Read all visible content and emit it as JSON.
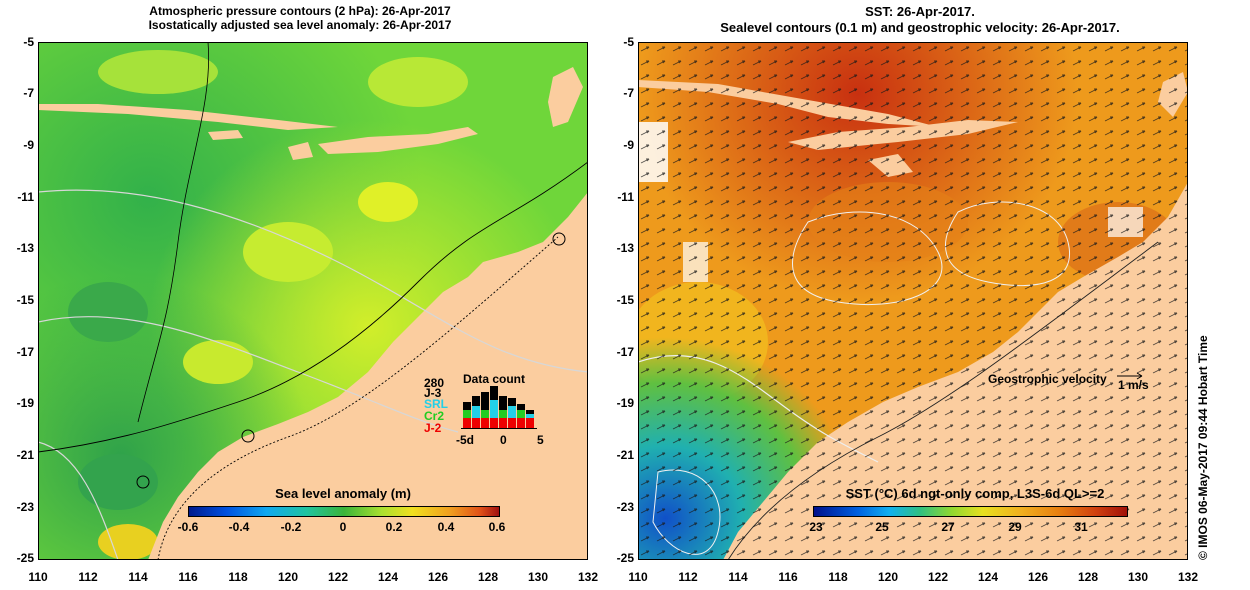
{
  "left_panel": {
    "title_line1": "Atmospheric pressure contours (2 hPa): 26-Apr-2017",
    "title_line2": "Isostatically adjusted sea level anomaly: 26-Apr-2017",
    "y_ticks": [
      "-5",
      "-7",
      "-9",
      "-11",
      "-13",
      "-15",
      "-17",
      "-19",
      "-21",
      "-23",
      "-25"
    ],
    "x_ticks": [
      "110",
      "112",
      "114",
      "116",
      "118",
      "120",
      "122",
      "124",
      "126",
      "128",
      "130",
      "132"
    ],
    "colorbar_title": "Sea level anomaly (m)",
    "colorbar_ticks": [
      "-0.6",
      "-0.4",
      "-0.2",
      "0",
      "0.2",
      "0.4",
      "0.6"
    ],
    "data_count": {
      "title": "Data count",
      "max_label": "280",
      "satellites": [
        {
          "label": "J-3",
          "color": "#000000"
        },
        {
          "label": "SRL",
          "color": "#22d0e8"
        },
        {
          "label": "Cr2",
          "color": "#22cc22"
        },
        {
          "label": "J-2",
          "color": "#ee0000"
        }
      ],
      "x_axis": [
        "-5d",
        "0",
        "5"
      ]
    }
  },
  "right_panel": {
    "title_line1": "SST: 26-Apr-2017.",
    "title_line2": "Sealevel contours (0.1 m) and geostrophic velocity: 26-Apr-2017.",
    "y_ticks": [
      "-5",
      "-7",
      "-9",
      "-11",
      "-13",
      "-15",
      "-17",
      "-19",
      "-21",
      "-23",
      "-25"
    ],
    "x_ticks": [
      "110",
      "112",
      "114",
      "116",
      "118",
      "120",
      "122",
      "124",
      "126",
      "128",
      "130",
      "132"
    ],
    "velocity_legend": "Geostrophic velocity",
    "velocity_unit": "1 m/s",
    "colorbar_title": "SST (°C) 6d ngt-only comp, L3S-6d QL>=2",
    "colorbar_ticks": [
      "23",
      "25",
      "27",
      "29",
      "31"
    ]
  },
  "side_text": "© IMOS 06-May-2017 09:44 Hobart Time"
}
